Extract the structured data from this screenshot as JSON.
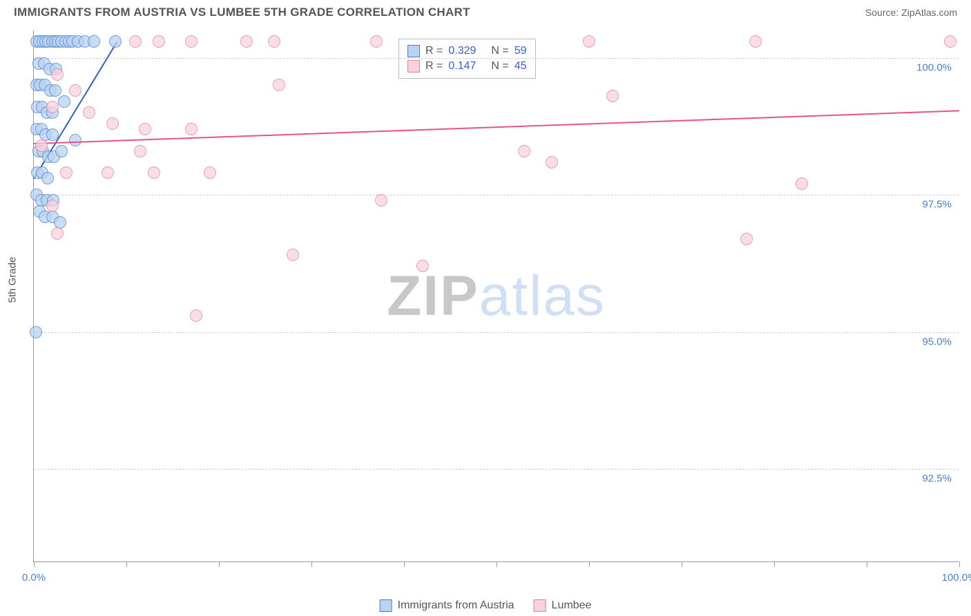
{
  "header": {
    "title": "IMMIGRANTS FROM AUSTRIA VS LUMBEE 5TH GRADE CORRELATION CHART",
    "source_prefix": "Source: ",
    "source_name": "ZipAtlas.com"
  },
  "watermark": {
    "part1": "ZIP",
    "part2": "atlas"
  },
  "chart": {
    "type": "scatter",
    "ylabel": "5th Grade",
    "xlim": [
      0,
      100
    ],
    "ylim": [
      90.8,
      100.5
    ],
    "xtick_positions": [
      0,
      10,
      20,
      30,
      40,
      50,
      60,
      70,
      80,
      90,
      100
    ],
    "xtick_labels": {
      "0": "0.0%",
      "100": "100.0%"
    },
    "ytick_positions": [
      92.5,
      95.0,
      97.5,
      100.0
    ],
    "ytick_labels": [
      "92.5%",
      "95.0%",
      "97.5%",
      "100.0%"
    ],
    "background_color": "#ffffff",
    "grid_color": "#cccccc",
    "axis_color": "#999999",
    "label_color": "#4a7ec9",
    "marker_radius": 9,
    "marker_stroke_width": 1.5,
    "trendline_width": 2
  },
  "series": [
    {
      "name": "Immigrants from Austria",
      "fill": "#b9d3f0",
      "stroke": "#4a7ec9",
      "line_color": "#2c5fc9",
      "R": "0.329",
      "N": "59",
      "trend": {
        "x1": 0,
        "y1": 97.8,
        "x2": 9,
        "y2": 100.3
      },
      "points": [
        [
          0.3,
          100.3
        ],
        [
          0.6,
          100.3
        ],
        [
          1.0,
          100.3
        ],
        [
          1.3,
          100.3
        ],
        [
          1.6,
          100.3
        ],
        [
          2.0,
          100.3
        ],
        [
          2.3,
          100.3
        ],
        [
          2.6,
          100.3
        ],
        [
          3.0,
          100.3
        ],
        [
          3.4,
          100.3
        ],
        [
          3.8,
          100.3
        ],
        [
          4.2,
          100.3
        ],
        [
          4.8,
          100.3
        ],
        [
          5.5,
          100.3
        ],
        [
          6.5,
          100.3
        ],
        [
          8.8,
          100.3
        ],
        [
          0.5,
          99.9
        ],
        [
          1.1,
          99.9
        ],
        [
          1.7,
          99.8
        ],
        [
          2.4,
          99.8
        ],
        [
          0.3,
          99.5
        ],
        [
          0.7,
          99.5
        ],
        [
          1.2,
          99.5
        ],
        [
          1.8,
          99.4
        ],
        [
          2.3,
          99.4
        ],
        [
          0.4,
          99.1
        ],
        [
          0.9,
          99.1
        ],
        [
          1.4,
          99.0
        ],
        [
          2.0,
          99.0
        ],
        [
          3.3,
          99.2
        ],
        [
          0.3,
          98.7
        ],
        [
          0.8,
          98.7
        ],
        [
          1.3,
          98.6
        ],
        [
          2.0,
          98.6
        ],
        [
          0.5,
          98.3
        ],
        [
          1.0,
          98.3
        ],
        [
          1.6,
          98.2
        ],
        [
          2.2,
          98.2
        ],
        [
          3.0,
          98.3
        ],
        [
          4.5,
          98.5
        ],
        [
          0.4,
          97.9
        ],
        [
          0.9,
          97.9
        ],
        [
          1.5,
          97.8
        ],
        [
          0.3,
          97.5
        ],
        [
          0.8,
          97.4
        ],
        [
          1.4,
          97.4
        ],
        [
          2.1,
          97.4
        ],
        [
          0.6,
          97.2
        ],
        [
          1.2,
          97.1
        ],
        [
          2.0,
          97.1
        ],
        [
          2.8,
          97.0
        ],
        [
          0.2,
          95.0
        ]
      ]
    },
    {
      "name": "Lumbee",
      "fill": "#f8d3dd",
      "stroke": "#e67ba0",
      "line_color": "#e8518b",
      "R": "0.147",
      "N": "45",
      "trend": {
        "x1": 0,
        "y1": 98.45,
        "x2": 100,
        "y2": 99.05
      },
      "points": [
        [
          11.0,
          100.3
        ],
        [
          13.5,
          100.3
        ],
        [
          17.0,
          100.3
        ],
        [
          23.0,
          100.3
        ],
        [
          26.0,
          100.3
        ],
        [
          37.0,
          100.3
        ],
        [
          60.0,
          100.3
        ],
        [
          78.0,
          100.3
        ],
        [
          99.0,
          100.3
        ],
        [
          2.5,
          99.7
        ],
        [
          4.5,
          99.4
        ],
        [
          26.5,
          99.5
        ],
        [
          2.0,
          99.1
        ],
        [
          6.0,
          99.0
        ],
        [
          62.5,
          99.3
        ],
        [
          8.5,
          98.8
        ],
        [
          12.0,
          98.7
        ],
        [
          17.0,
          98.7
        ],
        [
          0.8,
          98.4
        ],
        [
          11.5,
          98.3
        ],
        [
          3.5,
          97.9
        ],
        [
          8.0,
          97.9
        ],
        [
          13.0,
          97.9
        ],
        [
          19.0,
          97.9
        ],
        [
          53.0,
          98.3
        ],
        [
          56.0,
          98.1
        ],
        [
          2.0,
          97.3
        ],
        [
          37.5,
          97.4
        ],
        [
          83.0,
          97.7
        ],
        [
          2.5,
          96.8
        ],
        [
          77.0,
          96.7
        ],
        [
          28.0,
          96.4
        ],
        [
          42.0,
          96.2
        ],
        [
          17.5,
          95.3
        ]
      ]
    }
  ],
  "stats_legend_labels": {
    "R": "R =",
    "N": "N ="
  },
  "bottom_legend": {
    "series_a": "Immigrants from Austria",
    "series_b": "Lumbee"
  }
}
